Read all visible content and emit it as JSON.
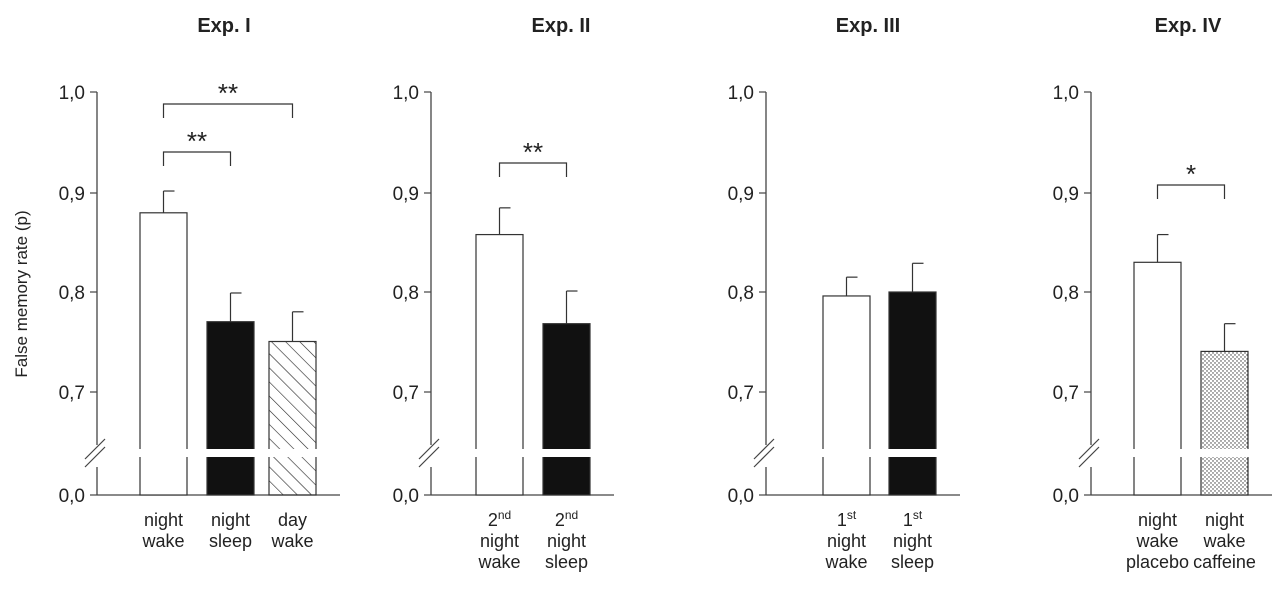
{
  "ylabel": "False memory rate (p)",
  "y_ticks": [
    "0,0",
    "0,7",
    "0,8",
    "0,9",
    "1,0"
  ],
  "chart_data": [
    {
      "type": "bar",
      "title": "Exp. I",
      "ylabel": "False memory rate (p)",
      "ylim": [
        0.0,
        1.0
      ],
      "axis_break": [
        0.0,
        0.7
      ],
      "categories": [
        {
          "lines": [
            {
              "text": "night"
            },
            {
              "text": "wake"
            }
          ]
        },
        {
          "lines": [
            {
              "text": "night"
            },
            {
              "text": "sleep"
            }
          ]
        },
        {
          "lines": [
            {
              "text": "day"
            },
            {
              "text": "wake"
            }
          ]
        }
      ],
      "values": [
        0.88,
        0.77,
        0.75
      ],
      "errors": [
        0.022,
        0.029,
        0.03
      ],
      "fills": [
        "white",
        "black",
        "hatched"
      ],
      "significance": [
        {
          "from": 0,
          "to": 1,
          "label": "**"
        },
        {
          "from": 0,
          "to": 2,
          "label": "**"
        }
      ]
    },
    {
      "type": "bar",
      "title": "Exp. II",
      "ylim": [
        0.0,
        1.0
      ],
      "axis_break": [
        0.0,
        0.7
      ],
      "categories": [
        {
          "lines": [
            {
              "text": "2",
              "sup": "nd"
            },
            {
              "text": "night"
            },
            {
              "text": "wake"
            }
          ]
        },
        {
          "lines": [
            {
              "text": "2",
              "sup": "nd"
            },
            {
              "text": "night"
            },
            {
              "text": "sleep"
            }
          ]
        }
      ],
      "values": [
        0.858,
        0.768
      ],
      "errors": [
        0.027,
        0.033
      ],
      "fills": [
        "white",
        "black"
      ],
      "significance": [
        {
          "from": 0,
          "to": 1,
          "label": "**"
        }
      ]
    },
    {
      "type": "bar",
      "title": "Exp. III",
      "ylim": [
        0.0,
        1.0
      ],
      "axis_break": [
        0.0,
        0.7
      ],
      "categories": [
        {
          "lines": [
            {
              "text": "1",
              "sup": "st"
            },
            {
              "text": "night"
            },
            {
              "text": "wake"
            }
          ]
        },
        {
          "lines": [
            {
              "text": "1",
              "sup": "st"
            },
            {
              "text": "night"
            },
            {
              "text": "sleep"
            }
          ]
        }
      ],
      "values": [
        0.796,
        0.8
      ],
      "errors": [
        0.019,
        0.029
      ],
      "fills": [
        "white",
        "black"
      ],
      "significance": []
    },
    {
      "type": "bar",
      "title": "Exp. IV",
      "ylim": [
        0.0,
        1.0
      ],
      "axis_break": [
        0.0,
        0.7
      ],
      "categories": [
        {
          "lines": [
            {
              "text": "night"
            },
            {
              "text": "wake"
            },
            {
              "text": "placebo"
            }
          ]
        },
        {
          "lines": [
            {
              "text": "night"
            },
            {
              "text": "wake"
            },
            {
              "text": "caffeine"
            }
          ]
        }
      ],
      "values": [
        0.83,
        0.74
      ],
      "errors": [
        0.028,
        0.028
      ],
      "fills": [
        "white",
        "dotted"
      ],
      "significance": [
        {
          "from": 0,
          "to": 1,
          "label": "*"
        }
      ]
    }
  ]
}
